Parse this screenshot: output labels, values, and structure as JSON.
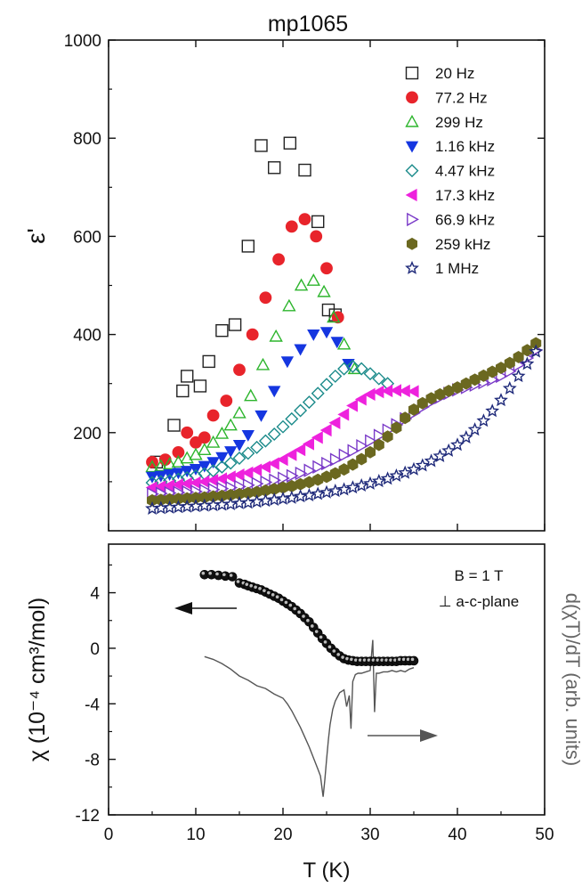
{
  "chart_data": [
    {
      "type": "scatter",
      "title": "mp1065",
      "ylabel": "ε'",
      "xlim": [
        0,
        50
      ],
      "ylim": [
        0,
        1000
      ],
      "yticks": [
        200,
        400,
        600,
        800,
        1000
      ],
      "legend_position": "top-right",
      "series": [
        {
          "name": "20 Hz",
          "marker": "square-open",
          "color": "#222222",
          "x": [
            5.5,
            7.5,
            8.5,
            9.0,
            10.5,
            11.5,
            13.0,
            14.5,
            16.0,
            17.5,
            19.0,
            20.8,
            22.5,
            24.0,
            25.2,
            26.0
          ],
          "y": [
            140,
            215,
            285,
            315,
            295,
            345,
            408,
            420,
            580,
            785,
            740,
            790,
            735,
            630,
            450,
            440
          ]
        },
        {
          "name": "77.2 Hz",
          "marker": "circle-filled",
          "color": "#e8242b",
          "x": [
            5.0,
            6.5,
            8.0,
            9.0,
            10.0,
            11.0,
            12.0,
            13.5,
            15.0,
            16.5,
            18.0,
            19.5,
            21.0,
            22.5,
            23.8,
            25.0,
            26.3
          ],
          "y": [
            140,
            145,
            160,
            200,
            180,
            190,
            235,
            265,
            328,
            400,
            475,
            553,
            620,
            635,
            600,
            535,
            435
          ]
        },
        {
          "name": "299 Hz",
          "marker": "triangle-up-open",
          "color": "#2db52d",
          "x": [
            5,
            6,
            7,
            8,
            9,
            10,
            11,
            12,
            13,
            14,
            15,
            16.3,
            17.7,
            19.2,
            20.7,
            22.1,
            23.5,
            24.7,
            25.8,
            27.0,
            28.2
          ],
          "y": [
            130,
            132,
            136,
            140,
            148,
            155,
            165,
            180,
            198,
            215,
            240,
            275,
            338,
            396,
            458,
            500,
            510,
            487,
            435,
            380,
            330
          ]
        },
        {
          "name": "1.16 kHz",
          "marker": "triangle-down-filled",
          "color": "#1536e0",
          "x": [
            5,
            6,
            7,
            8,
            9,
            10,
            11,
            12,
            13,
            14,
            15,
            16,
            17.5,
            19.0,
            20.5,
            22.0,
            23.5,
            25.0,
            26.2,
            27.5
          ],
          "y": [
            110,
            112,
            115,
            118,
            122,
            126,
            132,
            140,
            150,
            162,
            175,
            195,
            235,
            285,
            345,
            370,
            400,
            405,
            385,
            340
          ]
        },
        {
          "name": "4.47 kHz",
          "marker": "diamond-open",
          "color": "#1a8a8a",
          "x": [
            5,
            6,
            7,
            8,
            9,
            10,
            11,
            12,
            13,
            14,
            15,
            16,
            17,
            18,
            19,
            20,
            21,
            22,
            23,
            24,
            25,
            26,
            27,
            28,
            29,
            30,
            31,
            32
          ],
          "y": [
            98,
            100,
            102,
            105,
            108,
            112,
            116,
            122,
            130,
            138,
            148,
            158,
            170,
            183,
            197,
            212,
            228,
            245,
            262,
            280,
            298,
            315,
            330,
            335,
            330,
            320,
            310,
            300
          ]
        },
        {
          "name": "17.3 kHz",
          "marker": "triangle-left-filled",
          "color": "#ee22dd",
          "x": [
            5,
            6,
            7,
            8,
            9,
            10,
            11,
            12,
            13,
            14,
            15,
            16,
            17,
            18,
            19,
            20,
            21,
            22,
            23,
            24,
            25,
            26,
            27,
            28,
            29,
            30,
            31,
            32,
            33,
            34,
            35
          ],
          "y": [
            88,
            90,
            92,
            94,
            96,
            98,
            100,
            103,
            106,
            110,
            114,
            118,
            124,
            130,
            137,
            145,
            155,
            165,
            177,
            190,
            205,
            220,
            237,
            255,
            268,
            278,
            283,
            285,
            286,
            285,
            284
          ]
        },
        {
          "name": "66.9 kHz",
          "marker": "triangle-right-open",
          "color": "#7a3ac8",
          "x": [
            5,
            6,
            7,
            8,
            9,
            10,
            11,
            12,
            13,
            14,
            15,
            16,
            17,
            18,
            19,
            20,
            21,
            22,
            23,
            24,
            25,
            26,
            27,
            28,
            29,
            30,
            31,
            32,
            33,
            34,
            35,
            36,
            37,
            38,
            39,
            40,
            41,
            42,
            43,
            44,
            45,
            46,
            47,
            48,
            49
          ],
          "y": [
            75,
            76,
            77,
            78,
            79,
            80,
            82,
            84,
            86,
            88,
            90,
            93,
            96,
            99,
            103,
            107,
            112,
            117,
            123,
            130,
            137,
            145,
            154,
            163,
            173,
            183,
            194,
            205,
            216,
            228,
            240,
            252,
            263,
            272,
            280,
            287,
            292,
            297,
            302,
            308,
            315,
            325,
            338,
            352,
            368
          ]
        },
        {
          "name": "259 kHz",
          "marker": "hexagon-filled",
          "color": "#6b6820",
          "x": [
            5,
            6,
            7,
            8,
            9,
            10,
            11,
            12,
            13,
            14,
            15,
            16,
            17,
            18,
            19,
            20,
            21,
            22,
            23,
            24,
            25,
            26,
            27,
            28,
            29,
            30,
            31,
            32,
            33,
            34,
            35,
            36,
            37,
            38,
            39,
            40,
            41,
            42,
            43,
            44,
            45,
            46,
            47,
            48,
            49
          ],
          "y": [
            62,
            63,
            64,
            65,
            66,
            67,
            68,
            70,
            71,
            73,
            75,
            77,
            79,
            82,
            85,
            88,
            91,
            95,
            99,
            104,
            110,
            117,
            125,
            135,
            146,
            160,
            175,
            192,
            210,
            230,
            247,
            260,
            270,
            278,
            285,
            292,
            300,
            308,
            316,
            324,
            332,
            342,
            354,
            368,
            382
          ]
        },
        {
          "name": "1 MHz",
          "marker": "star-open",
          "color": "#1f2a7a",
          "x": [
            5,
            6,
            7,
            8,
            9,
            10,
            11,
            12,
            13,
            14,
            15,
            16,
            17,
            18,
            19,
            20,
            21,
            22,
            23,
            24,
            25,
            26,
            27,
            28,
            29,
            30,
            31,
            32,
            33,
            34,
            35,
            36,
            37,
            38,
            39,
            40,
            41,
            42,
            43,
            44,
            45,
            46,
            47,
            48,
            49
          ],
          "y": [
            45,
            46,
            47,
            48,
            49,
            50,
            51,
            52,
            53,
            54,
            56,
            57,
            59,
            61,
            63,
            65,
            67,
            70,
            72,
            75,
            78,
            81,
            84,
            88,
            92,
            96,
            101,
            106,
            112,
            118,
            125,
            133,
            142,
            152,
            163,
            175,
            190,
            206,
            224,
            244,
            266,
            290,
            315,
            340,
            365
          ]
        }
      ]
    },
    {
      "type": "line",
      "xlabel": "T (K)",
      "ylabel": "χ (10⁻⁴ cm³/mol)",
      "ylabel_right": "d(χT)/dT (arb. units)",
      "xlim": [
        0,
        50
      ],
      "ylim": [
        -12,
        7.5
      ],
      "xticks": [
        0,
        10,
        20,
        30,
        40,
        50
      ],
      "yticks": [
        -12,
        -8,
        -4,
        0,
        4
      ],
      "annotations": [
        "B = 1 T",
        "⊥ a-c-plane"
      ],
      "series": [
        {
          "name": "χ",
          "marker": "circle-filled",
          "color": "#111111",
          "x": [
            11.0,
            11.8,
            12.6,
            13.4,
            14.2,
            15.0,
            15.6,
            16.0,
            16.5,
            17.0,
            17.5,
            18.0,
            18.5,
            19.0,
            19.5,
            20.0,
            20.5,
            21.0,
            21.5,
            22.0,
            22.5,
            23.0,
            23.5,
            24.0,
            24.5,
            25.0,
            25.5,
            26.0,
            26.5,
            27.0,
            27.5,
            28.0,
            28.5,
            29.0,
            29.5,
            30.0,
            30.5,
            31.0,
            31.5,
            32.0,
            32.5,
            33.0,
            33.5,
            34.0,
            34.5,
            35.0
          ],
          "y": [
            5.3,
            5.3,
            5.25,
            5.2,
            5.15,
            4.7,
            4.6,
            4.5,
            4.4,
            4.3,
            4.2,
            4.05,
            3.9,
            3.75,
            3.6,
            3.4,
            3.2,
            3.0,
            2.75,
            2.5,
            2.2,
            1.9,
            1.5,
            1.1,
            0.7,
            0.35,
            0.0,
            -0.3,
            -0.55,
            -0.75,
            -0.85,
            -0.9,
            -0.95,
            -0.95,
            -0.95,
            -0.95,
            -0.95,
            -0.95,
            -0.95,
            -0.95,
            -0.95,
            -0.95,
            -0.9,
            -0.9,
            -0.9,
            -0.9
          ]
        },
        {
          "name": "d(χT)/dT",
          "marker": "none",
          "color": "#555555",
          "x": [
            11.0,
            12.0,
            13.0,
            14.0,
            15.0,
            16.0,
            17.0,
            18.0,
            19.0,
            20.0,
            20.5,
            21.0,
            21.5,
            22.0,
            22.5,
            23.0,
            23.5,
            24.0,
            24.3,
            24.6,
            24.8,
            25.0,
            25.2,
            25.4,
            25.7,
            26.0,
            26.5,
            27.0,
            27.3,
            27.6,
            27.8,
            28.0,
            28.3,
            28.6,
            29.0,
            29.5,
            30.0,
            30.3,
            30.5,
            30.7,
            31.0,
            31.5,
            32.0,
            32.5,
            33.0,
            33.5,
            34.0,
            34.5,
            35.0
          ],
          "y": [
            -0.6,
            -0.8,
            -1.1,
            -1.5,
            -2.0,
            -2.3,
            -2.7,
            -2.9,
            -3.3,
            -3.6,
            -4.0,
            -4.5,
            -5.1,
            -5.7,
            -6.4,
            -7.1,
            -7.9,
            -8.7,
            -9.2,
            -10.7,
            -9.5,
            -8.0,
            -6.6,
            -5.5,
            -4.4,
            -3.8,
            -3.2,
            -3.0,
            -4.2,
            -3.4,
            -5.8,
            -2.4,
            -1.9,
            -1.8,
            -1.8,
            -1.7,
            -1.6,
            0.6,
            -4.6,
            -1.8,
            -1.8,
            -1.7,
            -1.7,
            -1.6,
            -1.7,
            -1.6,
            -1.7,
            -1.5,
            -1.4
          ]
        }
      ]
    }
  ]
}
